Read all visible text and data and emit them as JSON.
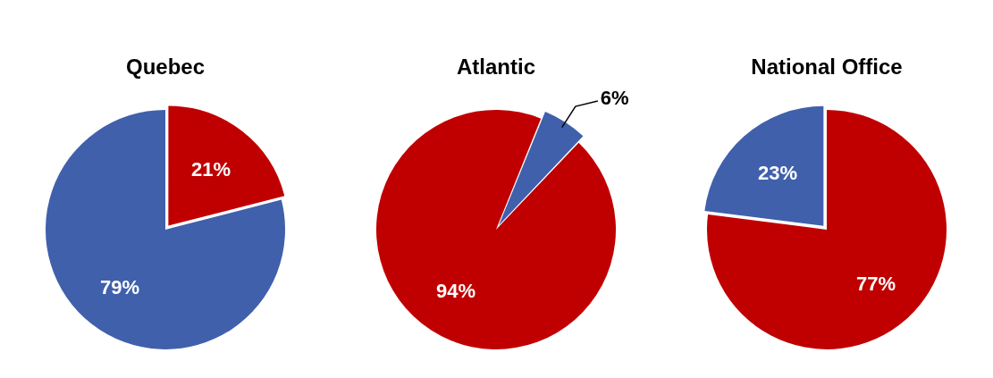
{
  "chart_data": [
    {
      "type": "pie",
      "title": "Quebec",
      "categories": [
        null,
        null
      ],
      "values": [
        21,
        79
      ],
      "colors": [
        "#c00000",
        "#4060ac"
      ],
      "value_labels": [
        "21%",
        "79%"
      ],
      "legend": false
    },
    {
      "type": "pie",
      "title": "Atlantic",
      "categories": [
        null,
        null
      ],
      "values": [
        6,
        94
      ],
      "colors": [
        "#4060ac",
        "#c00000"
      ],
      "value_labels": [
        "6%",
        "94%"
      ],
      "legend": false
    },
    {
      "type": "pie",
      "title": "National Office",
      "categories": [
        null,
        null
      ],
      "values": [
        77,
        23
      ],
      "colors": [
        "#c00000",
        "#4060ac"
      ],
      "value_labels": [
        "77%",
        "23%"
      ],
      "legend": false
    }
  ]
}
